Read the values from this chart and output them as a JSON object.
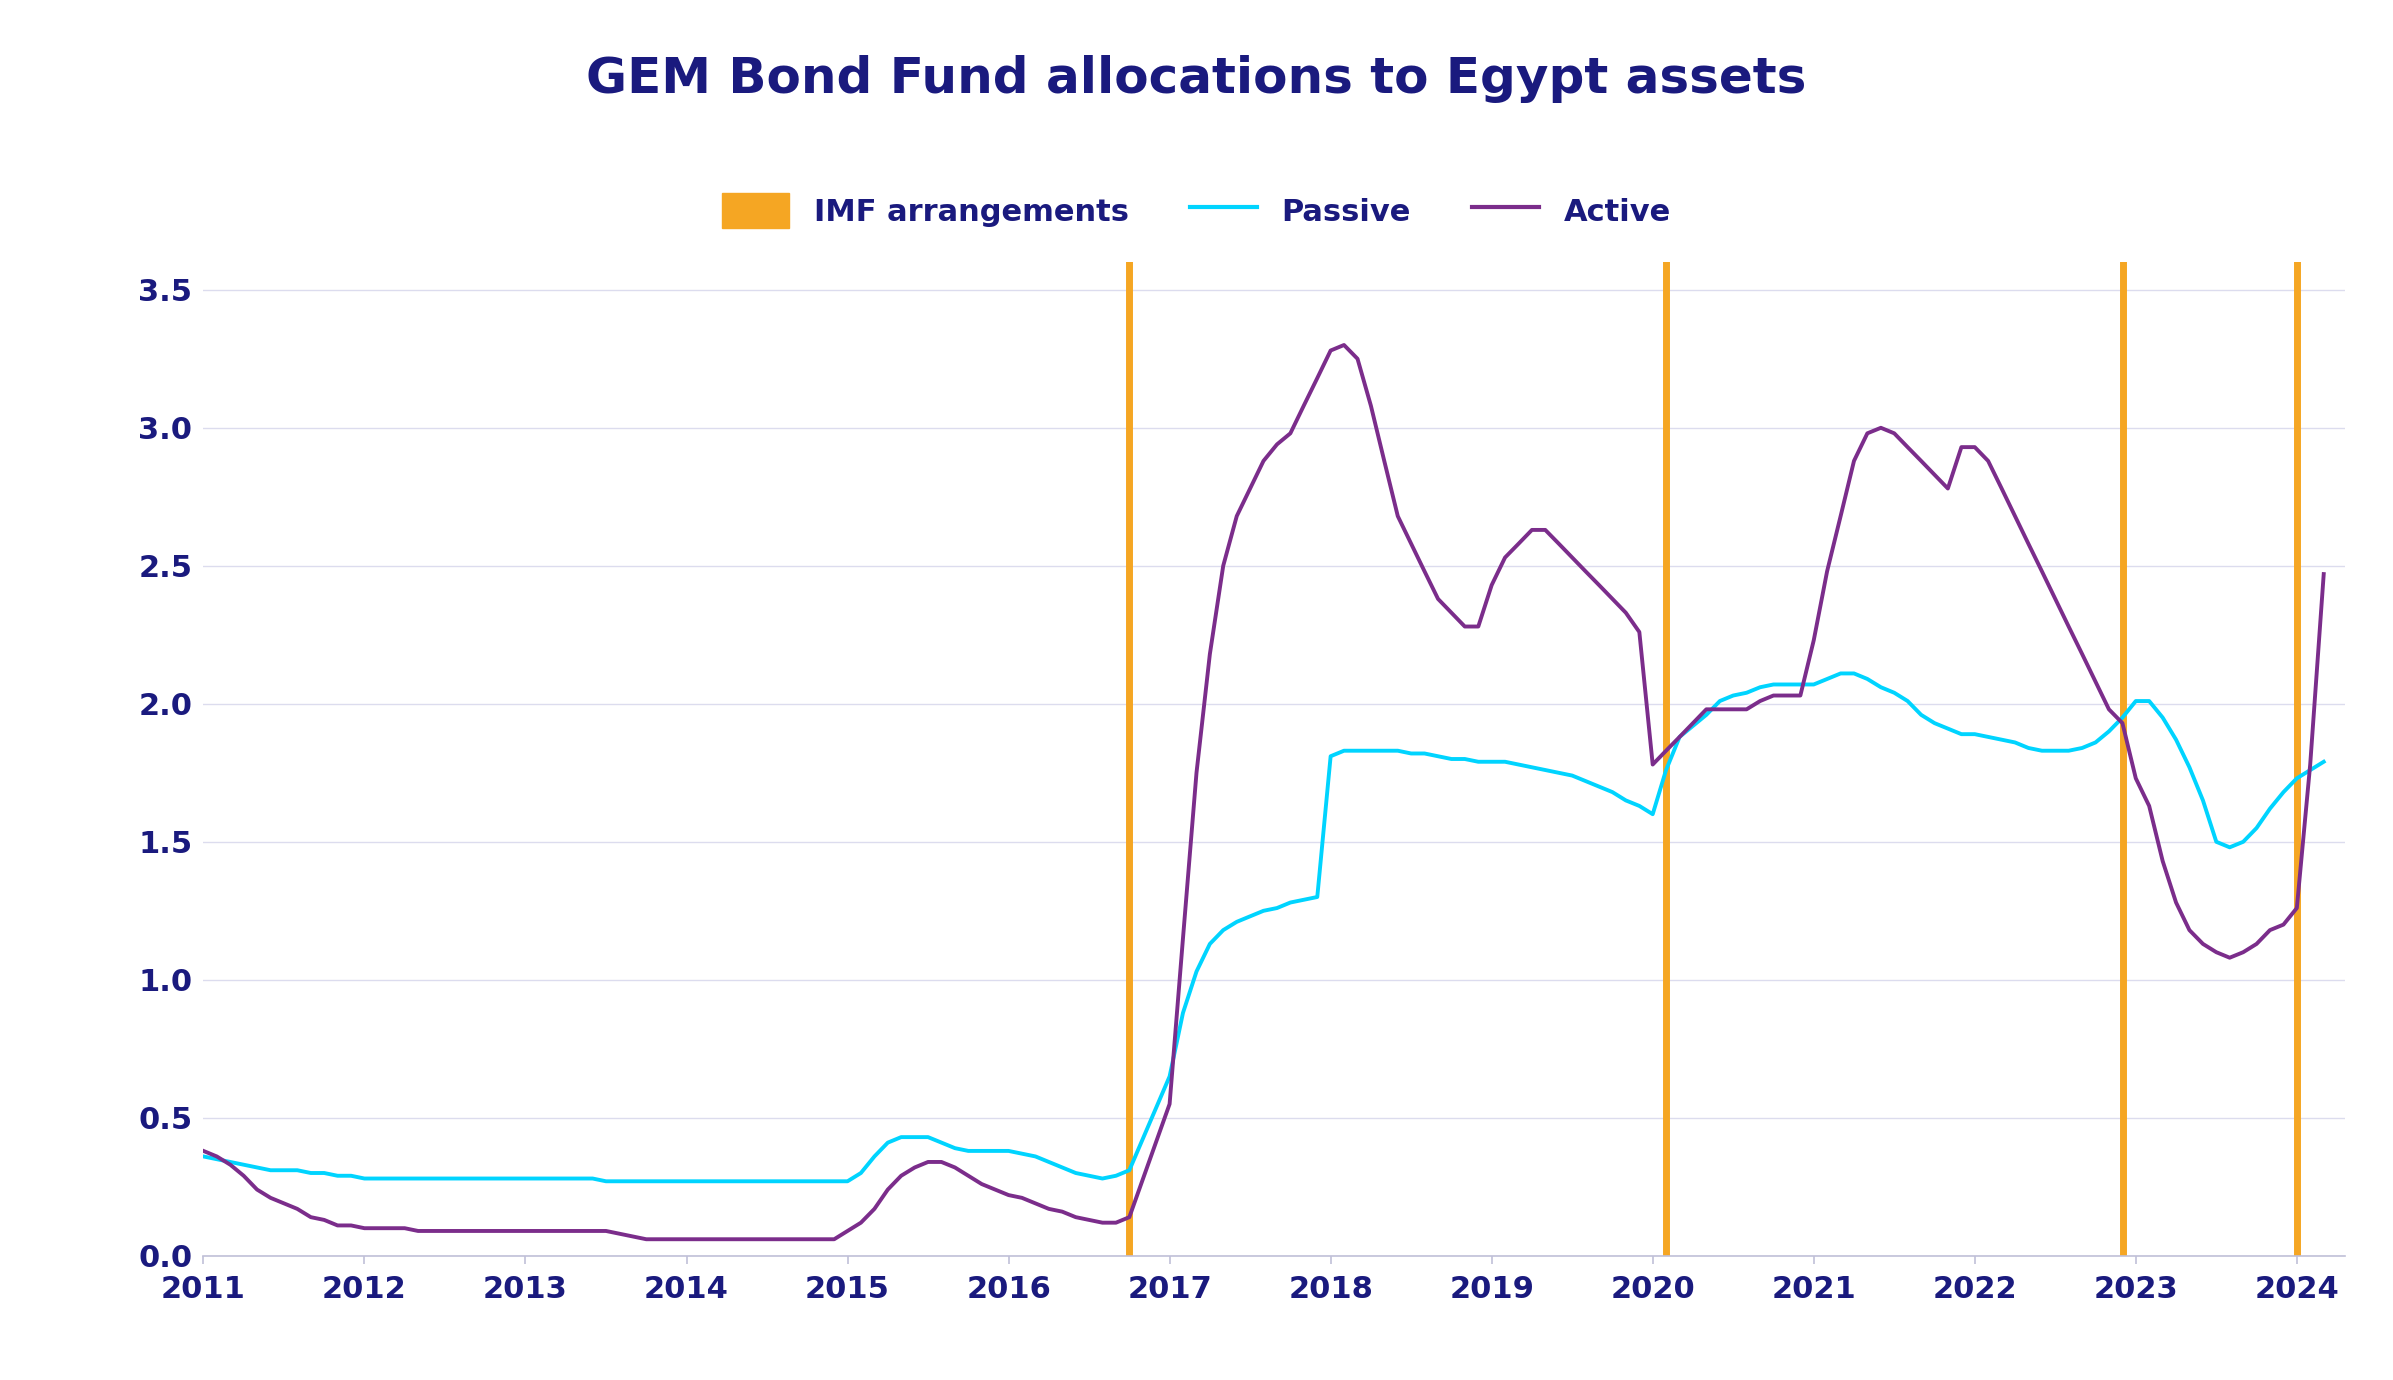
{
  "title": "GEM Bond Fund allocations to Egypt assets",
  "title_color": "#1a1a7e",
  "title_fontsize": 36,
  "background_color": "#ffffff",
  "plot_background": "#ffffff",
  "grid_color": "#dcdcee",
  "tick_color": "#1a1a7e",
  "tick_fontsize": 22,
  "ylim": [
    0,
    3.6
  ],
  "yticks": [
    0,
    0.5,
    1,
    1.5,
    2,
    2.5,
    3,
    3.5
  ],
  "xlim": [
    2011,
    2024.3
  ],
  "xticks": [
    2011,
    2012,
    2013,
    2014,
    2015,
    2016,
    2017,
    2018,
    2019,
    2020,
    2021,
    2022,
    2023,
    2024
  ],
  "imf_lines": [
    2016.75,
    2020.08,
    2022.92,
    2024.0
  ],
  "imf_color": "#F5A623",
  "passive_color": "#00D4FF",
  "active_color": "#7B2D8B",
  "legend_fontsize": 22,
  "passive_data": {
    "x": [
      2011.0,
      2011.083,
      2011.167,
      2011.25,
      2011.333,
      2011.417,
      2011.5,
      2011.583,
      2011.667,
      2011.75,
      2011.833,
      2011.917,
      2012.0,
      2012.083,
      2012.167,
      2012.25,
      2012.333,
      2012.417,
      2012.5,
      2012.583,
      2012.667,
      2012.75,
      2012.833,
      2012.917,
      2013.0,
      2013.083,
      2013.167,
      2013.25,
      2013.333,
      2013.417,
      2013.5,
      2013.583,
      2013.667,
      2013.75,
      2013.833,
      2013.917,
      2014.0,
      2014.083,
      2014.167,
      2014.25,
      2014.333,
      2014.417,
      2014.5,
      2014.583,
      2014.667,
      2014.75,
      2014.833,
      2014.917,
      2015.0,
      2015.083,
      2015.167,
      2015.25,
      2015.333,
      2015.417,
      2015.5,
      2015.583,
      2015.667,
      2015.75,
      2015.833,
      2015.917,
      2016.0,
      2016.083,
      2016.167,
      2016.25,
      2016.333,
      2016.417,
      2016.5,
      2016.583,
      2016.667,
      2016.75,
      2017.0,
      2017.083,
      2017.167,
      2017.25,
      2017.333,
      2017.417,
      2017.5,
      2017.583,
      2017.667,
      2017.75,
      2017.833,
      2017.917,
      2018.0,
      2018.083,
      2018.167,
      2018.25,
      2018.333,
      2018.417,
      2018.5,
      2018.583,
      2018.667,
      2018.75,
      2018.833,
      2018.917,
      2019.0,
      2019.083,
      2019.167,
      2019.25,
      2019.333,
      2019.417,
      2019.5,
      2019.583,
      2019.667,
      2019.75,
      2019.833,
      2019.917,
      2020.0,
      2020.083,
      2020.167,
      2020.25,
      2020.333,
      2020.417,
      2020.5,
      2020.583,
      2020.667,
      2020.75,
      2020.833,
      2020.917,
      2021.0,
      2021.083,
      2021.167,
      2021.25,
      2021.333,
      2021.417,
      2021.5,
      2021.583,
      2021.667,
      2021.75,
      2021.833,
      2021.917,
      2022.0,
      2022.083,
      2022.167,
      2022.25,
      2022.333,
      2022.417,
      2022.5,
      2022.583,
      2022.667,
      2022.75,
      2022.833,
      2022.917,
      2023.0,
      2023.083,
      2023.167,
      2023.25,
      2023.333,
      2023.417,
      2023.5,
      2023.583,
      2023.667,
      2023.75,
      2023.833,
      2023.917,
      2024.0,
      2024.083,
      2024.167
    ],
    "y": [
      0.36,
      0.35,
      0.34,
      0.33,
      0.32,
      0.31,
      0.31,
      0.31,
      0.3,
      0.3,
      0.29,
      0.29,
      0.28,
      0.28,
      0.28,
      0.28,
      0.28,
      0.28,
      0.28,
      0.28,
      0.28,
      0.28,
      0.28,
      0.28,
      0.28,
      0.28,
      0.28,
      0.28,
      0.28,
      0.28,
      0.27,
      0.27,
      0.27,
      0.27,
      0.27,
      0.27,
      0.27,
      0.27,
      0.27,
      0.27,
      0.27,
      0.27,
      0.27,
      0.27,
      0.27,
      0.27,
      0.27,
      0.27,
      0.27,
      0.3,
      0.36,
      0.41,
      0.43,
      0.43,
      0.43,
      0.41,
      0.39,
      0.38,
      0.38,
      0.38,
      0.38,
      0.37,
      0.36,
      0.34,
      0.32,
      0.3,
      0.29,
      0.28,
      0.29,
      0.31,
      0.65,
      0.88,
      1.03,
      1.13,
      1.18,
      1.21,
      1.23,
      1.25,
      1.26,
      1.28,
      1.29,
      1.3,
      1.81,
      1.83,
      1.83,
      1.83,
      1.83,
      1.83,
      1.82,
      1.82,
      1.81,
      1.8,
      1.8,
      1.79,
      1.79,
      1.79,
      1.78,
      1.77,
      1.76,
      1.75,
      1.74,
      1.72,
      1.7,
      1.68,
      1.65,
      1.63,
      1.6,
      1.76,
      1.88,
      1.92,
      1.96,
      2.01,
      2.03,
      2.04,
      2.06,
      2.07,
      2.07,
      2.07,
      2.07,
      2.09,
      2.11,
      2.11,
      2.09,
      2.06,
      2.04,
      2.01,
      1.96,
      1.93,
      1.91,
      1.89,
      1.89,
      1.88,
      1.87,
      1.86,
      1.84,
      1.83,
      1.83,
      1.83,
      1.84,
      1.86,
      1.9,
      1.95,
      2.01,
      2.01,
      1.95,
      1.87,
      1.77,
      1.65,
      1.5,
      1.48,
      1.5,
      1.55,
      1.62,
      1.68,
      1.73,
      1.76,
      1.79
    ]
  },
  "active_data": {
    "x": [
      2011.0,
      2011.083,
      2011.167,
      2011.25,
      2011.333,
      2011.417,
      2011.5,
      2011.583,
      2011.667,
      2011.75,
      2011.833,
      2011.917,
      2012.0,
      2012.083,
      2012.167,
      2012.25,
      2012.333,
      2012.417,
      2012.5,
      2012.583,
      2012.667,
      2012.75,
      2012.833,
      2012.917,
      2013.0,
      2013.083,
      2013.167,
      2013.25,
      2013.333,
      2013.417,
      2013.5,
      2013.583,
      2013.667,
      2013.75,
      2013.833,
      2013.917,
      2014.0,
      2014.083,
      2014.167,
      2014.25,
      2014.333,
      2014.417,
      2014.5,
      2014.583,
      2014.667,
      2014.75,
      2014.833,
      2014.917,
      2015.0,
      2015.083,
      2015.167,
      2015.25,
      2015.333,
      2015.417,
      2015.5,
      2015.583,
      2015.667,
      2015.75,
      2015.833,
      2015.917,
      2016.0,
      2016.083,
      2016.167,
      2016.25,
      2016.333,
      2016.417,
      2016.5,
      2016.583,
      2016.667,
      2016.75,
      2017.0,
      2017.083,
      2017.167,
      2017.25,
      2017.333,
      2017.417,
      2017.5,
      2017.583,
      2017.667,
      2017.75,
      2017.833,
      2017.917,
      2018.0,
      2018.083,
      2018.167,
      2018.25,
      2018.333,
      2018.417,
      2018.5,
      2018.583,
      2018.667,
      2018.75,
      2018.833,
      2018.917,
      2019.0,
      2019.083,
      2019.167,
      2019.25,
      2019.333,
      2019.417,
      2019.5,
      2019.583,
      2019.667,
      2019.75,
      2019.833,
      2019.917,
      2020.0,
      2020.083,
      2020.167,
      2020.25,
      2020.333,
      2020.417,
      2020.5,
      2020.583,
      2020.667,
      2020.75,
      2020.833,
      2020.917,
      2021.0,
      2021.083,
      2021.167,
      2021.25,
      2021.333,
      2021.417,
      2021.5,
      2021.583,
      2021.667,
      2021.75,
      2021.833,
      2021.917,
      2022.0,
      2022.083,
      2022.167,
      2022.25,
      2022.333,
      2022.417,
      2022.5,
      2022.583,
      2022.667,
      2022.75,
      2022.833,
      2022.917,
      2023.0,
      2023.083,
      2023.167,
      2023.25,
      2023.333,
      2023.417,
      2023.5,
      2023.583,
      2023.667,
      2023.75,
      2023.833,
      2023.917,
      2024.0,
      2024.083,
      2024.167
    ],
    "y": [
      0.38,
      0.36,
      0.33,
      0.29,
      0.24,
      0.21,
      0.19,
      0.17,
      0.14,
      0.13,
      0.11,
      0.11,
      0.1,
      0.1,
      0.1,
      0.1,
      0.09,
      0.09,
      0.09,
      0.09,
      0.09,
      0.09,
      0.09,
      0.09,
      0.09,
      0.09,
      0.09,
      0.09,
      0.09,
      0.09,
      0.09,
      0.08,
      0.07,
      0.06,
      0.06,
      0.06,
      0.06,
      0.06,
      0.06,
      0.06,
      0.06,
      0.06,
      0.06,
      0.06,
      0.06,
      0.06,
      0.06,
      0.06,
      0.09,
      0.12,
      0.17,
      0.24,
      0.29,
      0.32,
      0.34,
      0.34,
      0.32,
      0.29,
      0.26,
      0.24,
      0.22,
      0.21,
      0.19,
      0.17,
      0.16,
      0.14,
      0.13,
      0.12,
      0.12,
      0.14,
      0.55,
      1.15,
      1.75,
      2.18,
      2.5,
      2.68,
      2.78,
      2.88,
      2.94,
      2.98,
      3.08,
      3.18,
      3.28,
      3.3,
      3.25,
      3.08,
      2.88,
      2.68,
      2.58,
      2.48,
      2.38,
      2.33,
      2.28,
      2.28,
      2.43,
      2.53,
      2.58,
      2.63,
      2.63,
      2.58,
      2.53,
      2.48,
      2.43,
      2.38,
      2.33,
      2.26,
      1.78,
      1.83,
      1.88,
      1.93,
      1.98,
      1.98,
      1.98,
      1.98,
      2.01,
      2.03,
      2.03,
      2.03,
      2.23,
      2.48,
      2.68,
      2.88,
      2.98,
      3.0,
      2.98,
      2.93,
      2.88,
      2.83,
      2.78,
      2.93,
      2.93,
      2.88,
      2.78,
      2.68,
      2.58,
      2.48,
      2.38,
      2.28,
      2.18,
      2.08,
      1.98,
      1.93,
      1.73,
      1.63,
      1.43,
      1.28,
      1.18,
      1.13,
      1.1,
      1.08,
      1.1,
      1.13,
      1.18,
      1.2,
      1.26,
      1.78,
      2.47
    ]
  }
}
